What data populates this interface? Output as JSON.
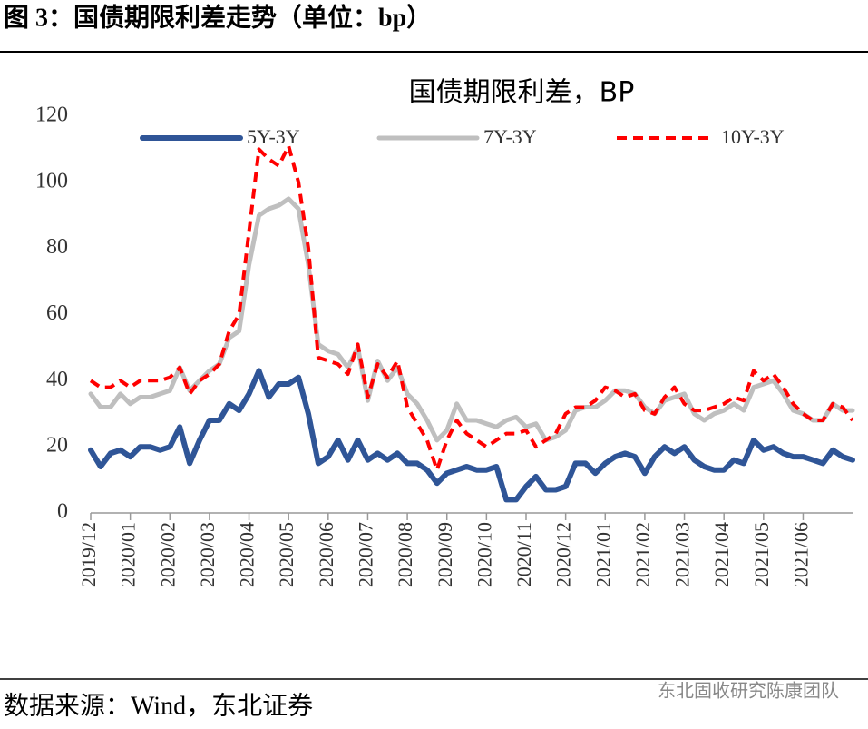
{
  "header": {
    "title": "图 3：国债期限利差走势（单位：bp）"
  },
  "chart_data": {
    "type": "line",
    "title": "国债期限利差，BP",
    "categories": [
      "2019/12",
      null,
      null,
      null,
      "2020/01",
      null,
      null,
      null,
      "2020/02",
      null,
      null,
      null,
      "2020/03",
      null,
      null,
      null,
      "2020/04",
      null,
      null,
      null,
      "2020/05",
      null,
      null,
      null,
      "2020/06",
      null,
      null,
      null,
      "2020/07",
      null,
      null,
      null,
      "2020/08",
      null,
      null,
      null,
      "2020/09",
      null,
      null,
      null,
      "2020/10",
      null,
      null,
      null,
      "2020/11",
      null,
      null,
      null,
      "2020/12",
      null,
      null,
      null,
      "2021/01",
      null,
      null,
      null,
      "2021/02",
      null,
      null,
      null,
      "2021/03",
      null,
      null,
      null,
      "2021/04",
      null,
      null,
      null,
      "2021/05",
      null,
      null,
      null,
      "2021/06",
      null,
      null,
      null,
      null,
      null
    ],
    "series": [
      {
        "name": "5Y-3Y",
        "color": "#2f5597",
        "dash": false,
        "values": [
          19,
          14,
          18,
          19,
          17,
          20,
          20,
          19,
          20,
          26,
          15,
          22,
          28,
          28,
          33,
          31,
          36,
          43,
          35,
          39,
          39,
          41,
          30,
          15,
          17,
          22,
          16,
          22,
          16,
          18,
          16,
          18,
          15,
          15,
          13,
          9,
          12,
          13,
          14,
          13,
          13,
          14,
          4,
          4,
          8,
          11,
          7,
          7,
          8,
          15,
          15,
          12,
          15,
          17,
          18,
          17,
          12,
          17,
          20,
          18,
          20,
          16,
          14,
          13,
          13,
          16,
          15,
          22,
          19,
          20,
          18,
          17,
          17,
          16,
          15,
          19,
          17,
          16
        ]
      },
      {
        "name": "7Y-3Y",
        "color": "#bfbfbf",
        "dash": false,
        "values": [
          36,
          32,
          32,
          36,
          33,
          35,
          35,
          36,
          37,
          44,
          37,
          40,
          43,
          45,
          53,
          55,
          75,
          90,
          92,
          93,
          95,
          92,
          75,
          51,
          49,
          48,
          44,
          50,
          34,
          46,
          40,
          44,
          36,
          33,
          28,
          22,
          25,
          33,
          28,
          28,
          27,
          26,
          28,
          29,
          26,
          27,
          22,
          23,
          25,
          31,
          32,
          32,
          34,
          37,
          37,
          36,
          32,
          30,
          34,
          35,
          36,
          30,
          28,
          30,
          31,
          33,
          31,
          38,
          39,
          40,
          36,
          31,
          30,
          28,
          28,
          33,
          31,
          31
        ]
      },
      {
        "name": "10Y-3Y",
        "color": "#ff0000",
        "dash": true,
        "values": [
          40,
          38,
          38,
          40,
          38,
          40,
          40,
          40,
          41,
          44,
          36,
          40,
          42,
          45,
          55,
          60,
          85,
          110,
          107,
          105,
          111,
          100,
          80,
          47,
          46,
          45,
          42,
          51,
          35,
          45,
          41,
          46,
          32,
          27,
          22,
          13,
          22,
          28,
          24,
          22,
          20,
          22,
          24,
          24,
          25,
          20,
          22,
          24,
          30,
          32,
          32,
          34,
          38,
          37,
          35,
          36,
          31,
          30,
          35,
          38,
          33,
          31,
          31,
          32,
          33,
          35,
          34,
          43,
          40,
          42,
          38,
          33,
          30,
          28,
          28,
          33,
          32,
          28
        ]
      }
    ],
    "ylim": [
      0,
      120
    ],
    "yticks": [
      0,
      20,
      40,
      60,
      80,
      100,
      120
    ]
  },
  "footer": {
    "source": "数据来源：Wind，东北证券",
    "watermark": "东北固收研究陈康团队"
  }
}
